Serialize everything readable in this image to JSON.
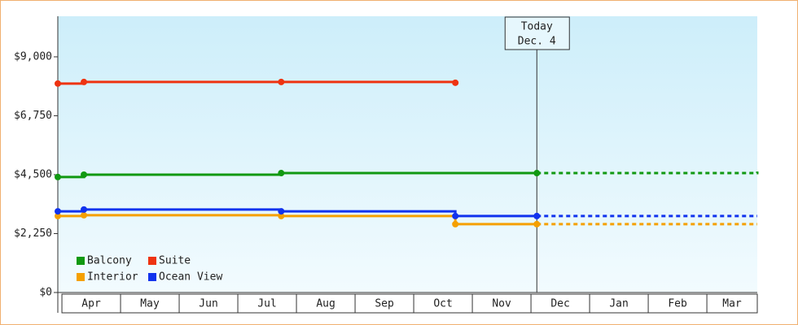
{
  "chart_data": {
    "type": "step-line",
    "series": [
      {
        "name": "Balcony",
        "color": "#119911",
        "x": [
          -0.07,
          0.375,
          3.74,
          8.1,
          11.86
        ],
        "values": [
          4410,
          4500,
          4560,
          4560,
          4620
        ]
      },
      {
        "name": "Suite",
        "color": "#ee3311",
        "x": [
          -0.07,
          0.375,
          3.74,
          6.71
        ],
        "values": [
          7980,
          8040,
          8040,
          8010
        ]
      },
      {
        "name": "Interior",
        "color": "#f5a000",
        "x": [
          -0.07,
          0.375,
          3.74,
          6.71,
          8.1,
          11.86
        ],
        "values": [
          2920,
          2950,
          2920,
          2610,
          2610,
          2610
        ]
      },
      {
        "name": "Ocean View",
        "color": "#1133ee",
        "x": [
          -0.07,
          0.375,
          3.74,
          6.71,
          8.1,
          11.86
        ],
        "values": [
          3100,
          3170,
          3100,
          2920,
          2920,
          2920
        ]
      }
    ],
    "xlim": [
      -0.07,
      11.86
    ],
    "xticks": [
      {
        "value": 0.5,
        "label": "Apr"
      },
      {
        "value": 1.5,
        "label": "May"
      },
      {
        "value": 2.5,
        "label": "Jun"
      },
      {
        "value": 3.5,
        "label": "Jul"
      },
      {
        "value": 4.5,
        "label": "Aug"
      },
      {
        "value": 5.5,
        "label": "Sep"
      },
      {
        "value": 6.5,
        "label": "Oct"
      },
      {
        "value": 7.5,
        "label": "Nov"
      },
      {
        "value": 8.5,
        "label": "Dec"
      },
      {
        "value": 9.5,
        "label": "Jan"
      },
      {
        "value": 10.5,
        "label": "Feb"
      },
      {
        "value": 11.43,
        "label": "Mar"
      }
    ],
    "ylim": [
      0,
      10550
    ],
    "yticks": [
      {
        "value": 0,
        "label": "$0"
      },
      {
        "value": 2250,
        "label": "$2,250"
      },
      {
        "value": 4500,
        "label": "$4,500"
      },
      {
        "value": 6750,
        "label": "$6,750"
      },
      {
        "value": 9000,
        "label": "$9,000"
      }
    ],
    "annotation": {
      "x": 8.1,
      "label": "Today",
      "date": "Dec. 4"
    },
    "legend": "lower left"
  }
}
